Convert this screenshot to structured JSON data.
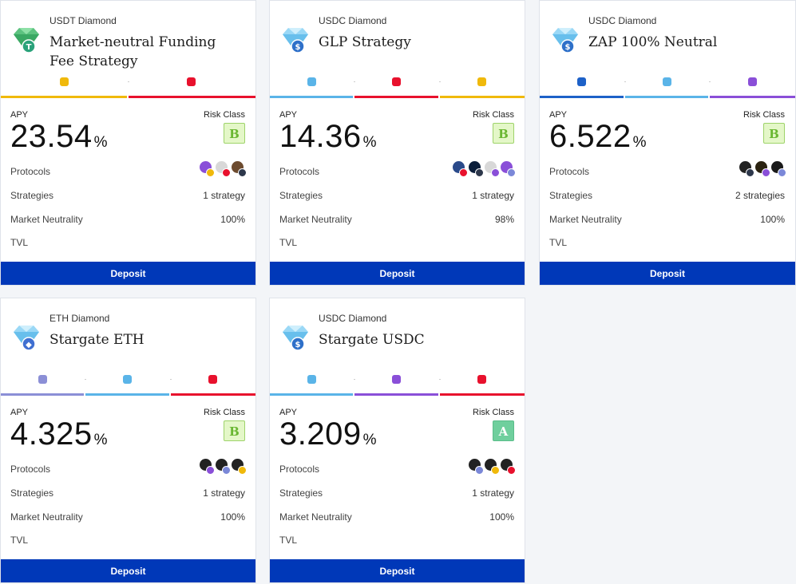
{
  "colors": {
    "deposit_bg": "#0038b8",
    "bnb": "#f0b90b",
    "dforce": "#e8112d",
    "gmx": "#5ab4e8",
    "link_dark": "#1d61c8",
    "chain_violet": "#8a4fd8",
    "eth_lavender": "#8b8fd6"
  },
  "cards": [
    {
      "pair": "USDT Diamond",
      "title": "Market-neutral Funding Fee Strategy",
      "gem_icon": "diamond-usdt-icon",
      "tokens": [
        {
          "icon": "bnb-icon",
          "color": "#f0b90b"
        },
        {
          "icon": "dforce-icon",
          "color": "#e8112d"
        }
      ],
      "apy_label": "APY",
      "apy": "23.54",
      "apy_unit": "%",
      "risk_label": "Risk Class",
      "risk": "B",
      "protocols_label": "Protocols",
      "protocols": [
        "lens-protocol-icon",
        "paper-wallet-icon",
        "box-protocol-icon"
      ],
      "strategies_label": "Strategies",
      "strategies": "1 strategy",
      "neutrality_label": "Market Neutrality",
      "neutrality": "100%",
      "tvl_label": "TVL",
      "deposit_label": "Deposit"
    },
    {
      "pair": "USDC Diamond",
      "title": "GLP Strategy",
      "gem_icon": "diamond-usdc-icon",
      "tokens": [
        {
          "icon": "arbitrum-icon",
          "color": "#5ab4e8"
        },
        {
          "icon": "dforce-icon",
          "color": "#e8112d"
        },
        {
          "icon": "bnb-icon",
          "color": "#f0b90b"
        }
      ],
      "apy_label": "APY",
      "apy": "14.36",
      "apy_unit": "%",
      "risk_label": "Risk Class",
      "risk": "B",
      "protocols_label": "Protocols",
      "protocols": [
        "gmx-icon",
        "xswap-icon",
        "paper-wallet-icon",
        "lens-protocol-icon"
      ],
      "strategies_label": "Strategies",
      "strategies": "1 strategy",
      "neutrality_label": "Market Neutrality",
      "neutrality": "98%",
      "tvl_label": "TVL",
      "deposit_label": "Deposit"
    },
    {
      "pair": "USDC Diamond",
      "title": "ZAP 100% Neutral",
      "gem_icon": "diamond-usdc-icon",
      "tokens": [
        {
          "icon": "swap-arrows-icon",
          "color": "#1d61c8"
        },
        {
          "icon": "arbitrum-icon",
          "color": "#5ab4e8"
        },
        {
          "icon": "chainlink-icon",
          "color": "#8a4fd8"
        }
      ],
      "apy_label": "APY",
      "apy": "6.522",
      "apy_unit": "%",
      "risk_label": "Risk Class",
      "risk": "B",
      "protocols_label": "Protocols",
      "protocols": [
        "binance-icon",
        "gold-coin-icon",
        "radiant-icon"
      ],
      "strategies_label": "Strategies",
      "strategies": "2 strategies",
      "neutrality_label": "Market Neutrality",
      "neutrality": "100%",
      "tvl_label": "TVL",
      "deposit_label": "Deposit"
    },
    {
      "pair": "ETH Diamond",
      "title": "Stargate ETH",
      "gem_icon": "diamond-eth-icon",
      "tokens": [
        {
          "icon": "ethereum-icon",
          "color": "#8b8fd6"
        },
        {
          "icon": "arbitrum-icon",
          "color": "#5ab4e8"
        },
        {
          "icon": "dforce-icon",
          "color": "#e8112d"
        }
      ],
      "apy_label": "APY",
      "apy": "4.325",
      "apy_unit": "%",
      "risk_label": "Risk Class",
      "risk": "B",
      "protocols_label": "Protocols",
      "protocols": [
        "binance-icon",
        "binance-icon",
        "binance-icon"
      ],
      "strategies_label": "Strategies",
      "strategies": "1 strategy",
      "neutrality_label": "Market Neutrality",
      "neutrality": "100%",
      "tvl_label": "TVL",
      "deposit_label": "Deposit"
    },
    {
      "pair": "USDC Diamond",
      "title": "Stargate USDC",
      "gem_icon": "diamond-usdc-icon",
      "tokens": [
        {
          "icon": "arbitrum-icon",
          "color": "#5ab4e8"
        },
        {
          "icon": "chainlink-icon",
          "color": "#8a4fd8"
        },
        {
          "icon": "dforce-icon",
          "color": "#e8112d"
        }
      ],
      "apy_label": "APY",
      "apy": "3.209",
      "apy_unit": "%",
      "risk_label": "Risk Class",
      "risk": "A",
      "protocols_label": "Protocols",
      "protocols": [
        "binance-icon",
        "binance-icon",
        "binance-icon"
      ],
      "strategies_label": "Strategies",
      "strategies": "1 strategy",
      "neutrality_label": "Market Neutrality",
      "neutrality": "100%",
      "tvl_label": "TVL",
      "deposit_label": "Deposit"
    }
  ]
}
